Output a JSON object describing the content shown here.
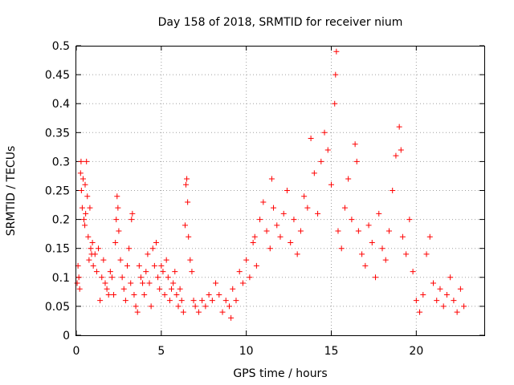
{
  "chart_data": {
    "type": "scatter",
    "title": "Day 158 of 2018, SRMTID for receiver nium",
    "xlabel": "GPS time / hours",
    "ylabel": "SRMTID / TECUs",
    "xlim": [
      0,
      24
    ],
    "ylim": [
      0,
      0.5
    ],
    "xticks": [
      0,
      5,
      10,
      15,
      20
    ],
    "yticks": [
      0,
      0.05,
      0.1,
      0.15,
      0.2,
      0.25,
      0.3,
      0.35,
      0.4,
      0.45,
      0.5
    ],
    "xtick_labels": [
      "0",
      "5",
      "10",
      "15",
      "20"
    ],
    "ytick_labels": [
      "0",
      "0.05",
      "0.1",
      "0.15",
      "0.2",
      "0.25",
      "0.3",
      "0.35",
      "0.4",
      "0.45",
      "0.5"
    ],
    "grid": true,
    "marker": "+",
    "color": "#ff0000",
    "series": [
      {
        "name": "SRMTID",
        "points": [
          [
            0.05,
            0.09
          ],
          [
            0.1,
            0.12
          ],
          [
            0.15,
            0.1
          ],
          [
            0.2,
            0.08
          ],
          [
            0.25,
            0.28
          ],
          [
            0.28,
            0.3
          ],
          [
            0.3,
            0.25
          ],
          [
            0.35,
            0.22
          ],
          [
            0.4,
            0.27
          ],
          [
            0.45,
            0.2
          ],
          [
            0.5,
            0.19
          ],
          [
            0.52,
            0.26
          ],
          [
            0.55,
            0.21
          ],
          [
            0.6,
            0.3
          ],
          [
            0.65,
            0.24
          ],
          [
            0.7,
            0.17
          ],
          [
            0.75,
            0.13
          ],
          [
            0.8,
            0.22
          ],
          [
            0.85,
            0.15
          ],
          [
            0.9,
            0.14
          ],
          [
            0.95,
            0.16
          ],
          [
            1.0,
            0.12
          ],
          [
            1.1,
            0.14
          ],
          [
            1.2,
            0.11
          ],
          [
            1.3,
            0.15
          ],
          [
            1.4,
            0.06
          ],
          [
            1.5,
            0.1
          ],
          [
            1.6,
            0.13
          ],
          [
            1.7,
            0.09
          ],
          [
            1.8,
            0.08
          ],
          [
            1.9,
            0.07
          ],
          [
            2.0,
            0.11
          ],
          [
            2.1,
            0.1
          ],
          [
            2.2,
            0.07
          ],
          [
            2.3,
            0.16
          ],
          [
            2.35,
            0.2
          ],
          [
            2.4,
            0.24
          ],
          [
            2.45,
            0.22
          ],
          [
            2.5,
            0.18
          ],
          [
            2.6,
            0.13
          ],
          [
            2.7,
            0.1
          ],
          [
            2.8,
            0.08
          ],
          [
            2.9,
            0.06
          ],
          [
            3.0,
            0.12
          ],
          [
            3.1,
            0.15
          ],
          [
            3.2,
            0.09
          ],
          [
            3.25,
            0.2
          ],
          [
            3.3,
            0.21
          ],
          [
            3.4,
            0.07
          ],
          [
            3.5,
            0.05
          ],
          [
            3.6,
            0.04
          ],
          [
            3.7,
            0.12
          ],
          [
            3.8,
            0.1
          ],
          [
            3.9,
            0.09
          ],
          [
            4.0,
            0.07
          ],
          [
            4.1,
            0.11
          ],
          [
            4.2,
            0.14
          ],
          [
            4.3,
            0.09
          ],
          [
            4.4,
            0.05
          ],
          [
            4.5,
            0.15
          ],
          [
            4.6,
            0.12
          ],
          [
            4.7,
            0.16
          ],
          [
            4.8,
            0.1
          ],
          [
            4.9,
            0.08
          ],
          [
            5.0,
            0.12
          ],
          [
            5.1,
            0.11
          ],
          [
            5.2,
            0.07
          ],
          [
            5.3,
            0.13
          ],
          [
            5.4,
            0.1
          ],
          [
            5.5,
            0.06
          ],
          [
            5.6,
            0.08
          ],
          [
            5.7,
            0.09
          ],
          [
            5.8,
            0.11
          ],
          [
            5.9,
            0.07
          ],
          [
            6.0,
            0.05
          ],
          [
            6.1,
            0.08
          ],
          [
            6.2,
            0.06
          ],
          [
            6.3,
            0.04
          ],
          [
            6.4,
            0.19
          ],
          [
            6.45,
            0.26
          ],
          [
            6.5,
            0.27
          ],
          [
            6.55,
            0.23
          ],
          [
            6.6,
            0.17
          ],
          [
            6.7,
            0.13
          ],
          [
            6.8,
            0.11
          ],
          [
            6.9,
            0.06
          ],
          [
            7.0,
            0.05
          ],
          [
            7.2,
            0.04
          ],
          [
            7.4,
            0.06
          ],
          [
            7.6,
            0.05
          ],
          [
            7.8,
            0.07
          ],
          [
            8.0,
            0.06
          ],
          [
            8.2,
            0.09
          ],
          [
            8.4,
            0.07
          ],
          [
            8.6,
            0.04
          ],
          [
            8.8,
            0.06
          ],
          [
            9.0,
            0.05
          ],
          [
            9.1,
            0.03
          ],
          [
            9.2,
            0.08
          ],
          [
            9.4,
            0.06
          ],
          [
            9.6,
            0.11
          ],
          [
            9.8,
            0.09
          ],
          [
            10.0,
            0.13
          ],
          [
            10.2,
            0.1
          ],
          [
            10.4,
            0.16
          ],
          [
            10.5,
            0.17
          ],
          [
            10.6,
            0.12
          ],
          [
            10.8,
            0.2
          ],
          [
            11.0,
            0.23
          ],
          [
            11.2,
            0.18
          ],
          [
            11.4,
            0.15
          ],
          [
            11.5,
            0.27
          ],
          [
            11.6,
            0.22
          ],
          [
            11.8,
            0.19
          ],
          [
            12.0,
            0.17
          ],
          [
            12.2,
            0.21
          ],
          [
            12.4,
            0.25
          ],
          [
            12.6,
            0.16
          ],
          [
            12.8,
            0.2
          ],
          [
            13.0,
            0.14
          ],
          [
            13.2,
            0.18
          ],
          [
            13.4,
            0.24
          ],
          [
            13.6,
            0.22
          ],
          [
            13.8,
            0.34
          ],
          [
            14.0,
            0.28
          ],
          [
            14.2,
            0.21
          ],
          [
            14.4,
            0.3
          ],
          [
            14.6,
            0.35
          ],
          [
            14.8,
            0.32
          ],
          [
            15.0,
            0.26
          ],
          [
            15.2,
            0.4
          ],
          [
            15.25,
            0.45
          ],
          [
            15.3,
            0.49
          ],
          [
            15.4,
            0.18
          ],
          [
            15.6,
            0.15
          ],
          [
            15.8,
            0.22
          ],
          [
            16.0,
            0.27
          ],
          [
            16.2,
            0.2
          ],
          [
            16.4,
            0.33
          ],
          [
            16.5,
            0.3
          ],
          [
            16.6,
            0.18
          ],
          [
            16.8,
            0.14
          ],
          [
            17.0,
            0.12
          ],
          [
            17.2,
            0.19
          ],
          [
            17.4,
            0.16
          ],
          [
            17.6,
            0.1
          ],
          [
            17.8,
            0.21
          ],
          [
            18.0,
            0.15
          ],
          [
            18.2,
            0.13
          ],
          [
            18.4,
            0.18
          ],
          [
            18.6,
            0.25
          ],
          [
            18.8,
            0.31
          ],
          [
            19.0,
            0.36
          ],
          [
            19.1,
            0.32
          ],
          [
            19.2,
            0.17
          ],
          [
            19.4,
            0.14
          ],
          [
            19.6,
            0.2
          ],
          [
            19.8,
            0.11
          ],
          [
            20.0,
            0.06
          ],
          [
            20.2,
            0.04
          ],
          [
            20.4,
            0.07
          ],
          [
            20.6,
            0.14
          ],
          [
            20.8,
            0.17
          ],
          [
            21.0,
            0.09
          ],
          [
            21.2,
            0.06
          ],
          [
            21.4,
            0.08
          ],
          [
            21.6,
            0.05
          ],
          [
            21.8,
            0.07
          ],
          [
            22.0,
            0.1
          ],
          [
            22.2,
            0.06
          ],
          [
            22.4,
            0.04
          ],
          [
            22.6,
            0.08
          ],
          [
            22.8,
            0.05
          ]
        ]
      }
    ]
  }
}
